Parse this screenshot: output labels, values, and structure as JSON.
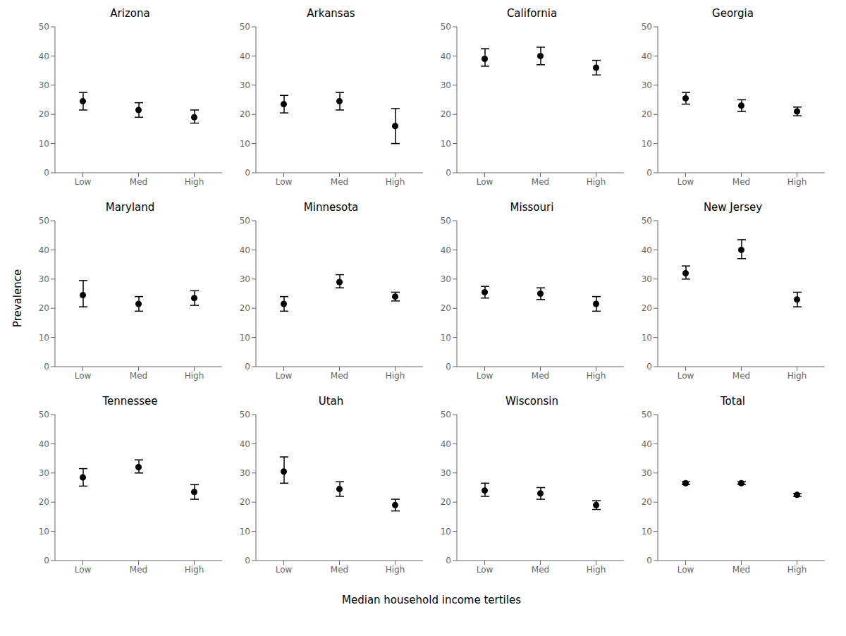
{
  "ylabel": "Prevalence",
  "xlabel": "Median household income tertiles",
  "chart_data": [
    {
      "type": "errorbar",
      "title": "Arizona",
      "categories": [
        "Low",
        "Med",
        "High"
      ],
      "values": [
        24.5,
        21.5,
        19.0
      ],
      "lo": [
        21.5,
        19.0,
        17.0
      ],
      "hi": [
        27.5,
        24.0,
        21.5
      ],
      "color": "#000000",
      "marker": "circle",
      "ylim": [
        0,
        50
      ],
      "yticks": [
        0,
        10,
        20,
        30,
        40,
        50
      ],
      "grid": false
    },
    {
      "type": "errorbar",
      "title": "Arkansas",
      "categories": [
        "Low",
        "Med",
        "High"
      ],
      "values": [
        23.5,
        24.5,
        16.0
      ],
      "lo": [
        20.5,
        21.5,
        10.0
      ],
      "hi": [
        26.5,
        27.5,
        22.0
      ],
      "color": "#000000",
      "marker": "circle",
      "ylim": [
        0,
        50
      ],
      "yticks": [
        0,
        10,
        20,
        30,
        40,
        50
      ],
      "grid": false
    },
    {
      "type": "errorbar",
      "title": "California",
      "categories": [
        "Low",
        "Med",
        "High"
      ],
      "values": [
        39.0,
        40.0,
        36.0
      ],
      "lo": [
        36.5,
        37.0,
        33.5
      ],
      "hi": [
        42.5,
        43.0,
        38.5
      ],
      "color": "#000000",
      "marker": "circle",
      "ylim": [
        0,
        50
      ],
      "yticks": [
        0,
        10,
        20,
        30,
        40,
        50
      ],
      "grid": false
    },
    {
      "type": "errorbar",
      "title": "Georgia",
      "categories": [
        "Low",
        "Med",
        "High"
      ],
      "values": [
        25.5,
        23.0,
        21.0
      ],
      "lo": [
        23.5,
        21.0,
        19.5
      ],
      "hi": [
        27.5,
        25.0,
        22.5
      ],
      "color": "#000000",
      "marker": "circle",
      "ylim": [
        0,
        50
      ],
      "yticks": [
        0,
        10,
        20,
        30,
        40,
        50
      ],
      "grid": false
    },
    {
      "type": "errorbar",
      "title": "Maryland",
      "categories": [
        "Low",
        "Med",
        "High"
      ],
      "values": [
        24.5,
        21.5,
        23.5
      ],
      "lo": [
        20.5,
        19.0,
        21.0
      ],
      "hi": [
        29.5,
        24.0,
        26.0
      ],
      "color": "#000000",
      "marker": "circle",
      "ylim": [
        0,
        50
      ],
      "yticks": [
        0,
        10,
        20,
        30,
        40,
        50
      ],
      "grid": false
    },
    {
      "type": "errorbar",
      "title": "Minnesota",
      "categories": [
        "Low",
        "Med",
        "High"
      ],
      "values": [
        21.5,
        29.0,
        24.0
      ],
      "lo": [
        19.0,
        27.0,
        22.5
      ],
      "hi": [
        24.0,
        31.5,
        25.5
      ],
      "color": "#000000",
      "marker": "circle",
      "ylim": [
        0,
        50
      ],
      "yticks": [
        0,
        10,
        20,
        30,
        40,
        50
      ],
      "grid": false
    },
    {
      "type": "errorbar",
      "title": "Missouri",
      "categories": [
        "Low",
        "Med",
        "High"
      ],
      "values": [
        25.5,
        25.0,
        21.5
      ],
      "lo": [
        23.5,
        23.0,
        19.0
      ],
      "hi": [
        27.5,
        27.0,
        24.0
      ],
      "color": "#000000",
      "marker": "circle",
      "ylim": [
        0,
        50
      ],
      "yticks": [
        0,
        10,
        20,
        30,
        40,
        50
      ],
      "grid": false
    },
    {
      "type": "errorbar",
      "title": "New Jersey",
      "categories": [
        "Low",
        "Med",
        "High"
      ],
      "values": [
        32.0,
        40.0,
        23.0
      ],
      "lo": [
        30.0,
        37.0,
        20.5
      ],
      "hi": [
        34.5,
        43.5,
        25.5
      ],
      "color": "#000000",
      "marker": "circle",
      "ylim": [
        0,
        50
      ],
      "yticks": [
        0,
        10,
        20,
        30,
        40,
        50
      ],
      "grid": false
    },
    {
      "type": "errorbar",
      "title": "Tennessee",
      "categories": [
        "Low",
        "Med",
        "High"
      ],
      "values": [
        28.5,
        32.0,
        23.5
      ],
      "lo": [
        25.5,
        30.0,
        21.0
      ],
      "hi": [
        31.5,
        34.5,
        26.0
      ],
      "color": "#000000",
      "marker": "circle",
      "ylim": [
        0,
        50
      ],
      "yticks": [
        0,
        10,
        20,
        30,
        40,
        50
      ],
      "grid": false
    },
    {
      "type": "errorbar",
      "title": "Utah",
      "categories": [
        "Low",
        "Med",
        "High"
      ],
      "values": [
        30.5,
        24.5,
        19.0
      ],
      "lo": [
        26.5,
        22.0,
        17.0
      ],
      "hi": [
        35.5,
        27.0,
        21.0
      ],
      "color": "#000000",
      "marker": "circle",
      "ylim": [
        0,
        50
      ],
      "yticks": [
        0,
        10,
        20,
        30,
        40,
        50
      ],
      "grid": false
    },
    {
      "type": "errorbar",
      "title": "Wisconsin",
      "categories": [
        "Low",
        "Med",
        "High"
      ],
      "values": [
        24.0,
        23.0,
        19.0
      ],
      "lo": [
        22.0,
        21.0,
        17.5
      ],
      "hi": [
        26.5,
        25.0,
        20.5
      ],
      "color": "#000000",
      "marker": "circle",
      "ylim": [
        0,
        50
      ],
      "yticks": [
        0,
        10,
        20,
        30,
        40,
        50
      ],
      "grid": false
    },
    {
      "type": "errorbar",
      "title": "Total",
      "categories": [
        "Low",
        "Med",
        "High"
      ],
      "values": [
        26.5,
        26.5,
        22.5
      ],
      "lo": [
        26.0,
        26.0,
        22.0
      ],
      "hi": [
        27.0,
        27.0,
        23.0
      ],
      "color": "#000000",
      "marker": "circle",
      "ylim": [
        0,
        50
      ],
      "yticks": [
        0,
        10,
        20,
        30,
        40,
        50
      ],
      "grid": false
    }
  ]
}
